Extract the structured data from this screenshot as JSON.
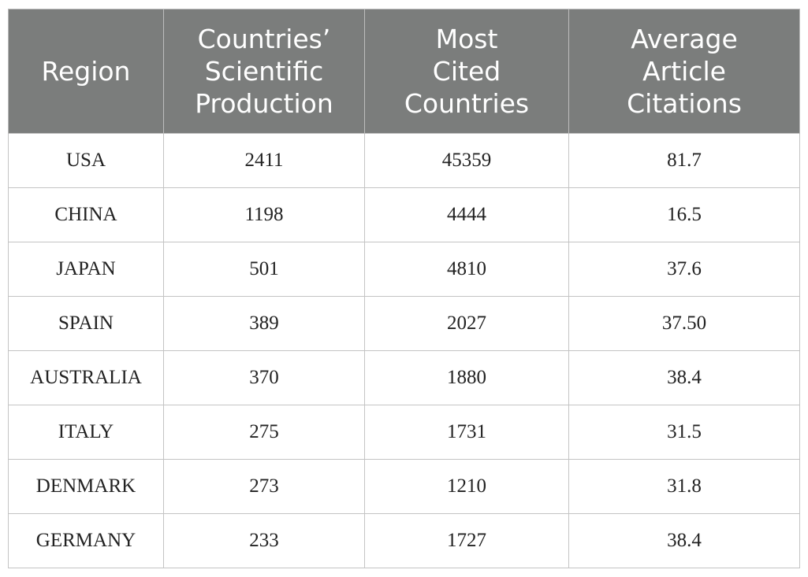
{
  "table": {
    "headers": [
      [
        "Region"
      ],
      [
        "Countries’",
        "Scientific",
        "Production"
      ],
      [
        "Most",
        "Cited",
        "Countries"
      ],
      [
        "Average",
        "Article",
        "Citations"
      ]
    ],
    "rows": [
      [
        "USA",
        "2411",
        "45359",
        "81.7"
      ],
      [
        "CHINA",
        "1198",
        "4444",
        "16.5"
      ],
      [
        "JAPAN",
        "501",
        "4810",
        "37.6"
      ],
      [
        "SPAIN",
        "389",
        "2027",
        "37.50"
      ],
      [
        "AUSTRALIA",
        "370",
        "1880",
        "38.4"
      ],
      [
        "ITALY",
        "275",
        "1731",
        "31.5"
      ],
      [
        "DENMARK",
        "273",
        "1210",
        "31.8"
      ],
      [
        "GERMANY",
        "233",
        "1727",
        "38.4"
      ]
    ]
  },
  "colors": {
    "header_background": "#7b7d7c",
    "header_text": "#ffffff",
    "grid_line": "#c4c4c4"
  }
}
